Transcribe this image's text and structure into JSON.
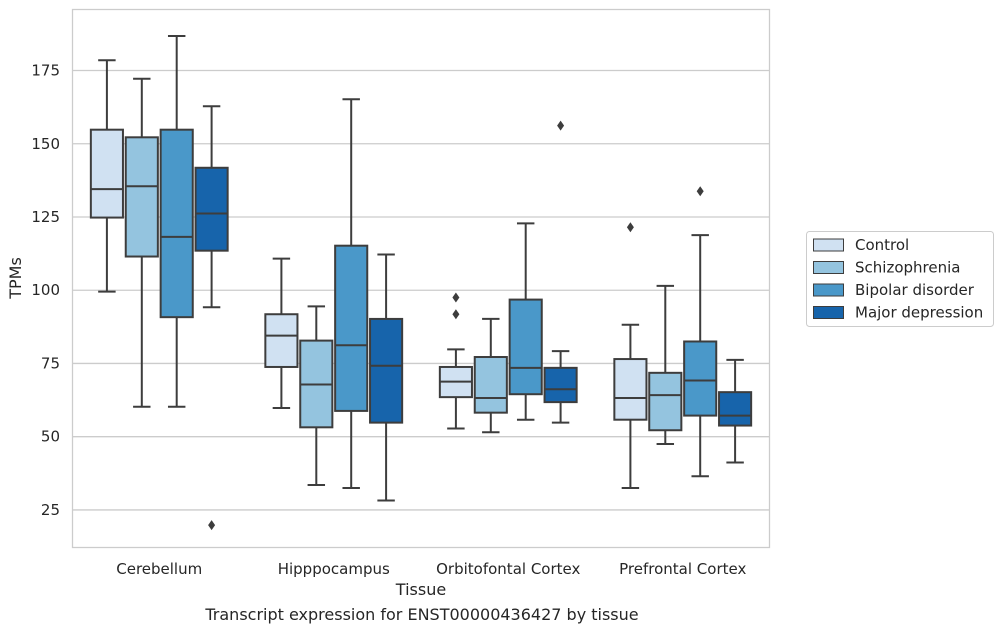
{
  "caption": "Transcript expression for ENST00000436427 by tissue",
  "chart_data": {
    "type": "box",
    "xlabel": "Tissue",
    "ylabel": "TPMs",
    "ylim": [
      12,
      196
    ],
    "yticks": [
      25,
      50,
      75,
      100,
      125,
      150,
      175
    ],
    "grid": true,
    "legend_position": "right",
    "categories": [
      "Cerebellum",
      "Hipppocampus",
      "Orbitofontal Cortex",
      "Prefrontal Cortex"
    ],
    "series": [
      {
        "name": "Control",
        "color": "#d0e1f2",
        "boxes": [
          {
            "whisker_low": 99.5,
            "q1": 124.8,
            "median": 134.5,
            "q3": 154.8,
            "whisker_high": 178.5,
            "outliers": []
          },
          {
            "whisker_low": 59.8,
            "q1": 73.8,
            "median": 84.5,
            "q3": 91.8,
            "whisker_high": 110.8,
            "outliers": []
          },
          {
            "whisker_low": 52.8,
            "q1": 63.5,
            "median": 68.8,
            "q3": 73.8,
            "whisker_high": 79.8,
            "outliers": [
              91.8,
              97.5
            ]
          },
          {
            "whisker_low": 32.5,
            "q1": 55.8,
            "median": 63.2,
            "q3": 76.5,
            "whisker_high": 88.2,
            "outliers": [
              121.5
            ]
          }
        ]
      },
      {
        "name": "Schizophrenia",
        "color": "#94c4df",
        "boxes": [
          {
            "whisker_low": 60.2,
            "q1": 111.5,
            "median": 135.5,
            "q3": 152.2,
            "whisker_high": 172.2,
            "outliers": []
          },
          {
            "whisker_low": 33.5,
            "q1": 53.2,
            "median": 67.8,
            "q3": 82.8,
            "whisker_high": 94.5,
            "outliers": []
          },
          {
            "whisker_low": 51.5,
            "q1": 58.2,
            "median": 63.2,
            "q3": 77.2,
            "whisker_high": 90.2,
            "outliers": []
          },
          {
            "whisker_low": 47.5,
            "q1": 52.2,
            "median": 64.2,
            "q3": 71.8,
            "whisker_high": 101.5,
            "outliers": []
          }
        ]
      },
      {
        "name": "Bipolar disorder",
        "color": "#4a98c9",
        "boxes": [
          {
            "whisker_low": 60.2,
            "q1": 90.8,
            "median": 118.2,
            "q3": 154.8,
            "whisker_high": 186.8,
            "outliers": []
          },
          {
            "whisker_low": 32.5,
            "q1": 58.8,
            "median": 81.2,
            "q3": 115.2,
            "whisker_high": 165.2,
            "outliers": []
          },
          {
            "whisker_low": 55.8,
            "q1": 64.5,
            "median": 73.5,
            "q3": 96.8,
            "whisker_high": 122.8,
            "outliers": []
          },
          {
            "whisker_low": 36.5,
            "q1": 57.2,
            "median": 69.2,
            "q3": 82.5,
            "whisker_high": 118.8,
            "outliers": [
              133.8
            ]
          }
        ]
      },
      {
        "name": "Major depression",
        "color": "#1764ab",
        "boxes": [
          {
            "whisker_low": 94.2,
            "q1": 113.5,
            "median": 126.2,
            "q3": 141.8,
            "whisker_high": 162.8,
            "outliers": [
              19.8
            ]
          },
          {
            "whisker_low": 28.2,
            "q1": 54.8,
            "median": 74.2,
            "q3": 90.2,
            "whisker_high": 112.2,
            "outliers": []
          },
          {
            "whisker_low": 54.8,
            "q1": 61.8,
            "median": 66.2,
            "q3": 73.5,
            "whisker_high": 79.2,
            "outliers": [
              156.2
            ]
          },
          {
            "whisker_low": 41.2,
            "q1": 53.8,
            "median": 57.2,
            "q3": 65.2,
            "whisker_high": 76.2,
            "outliers": []
          }
        ]
      }
    ]
  }
}
